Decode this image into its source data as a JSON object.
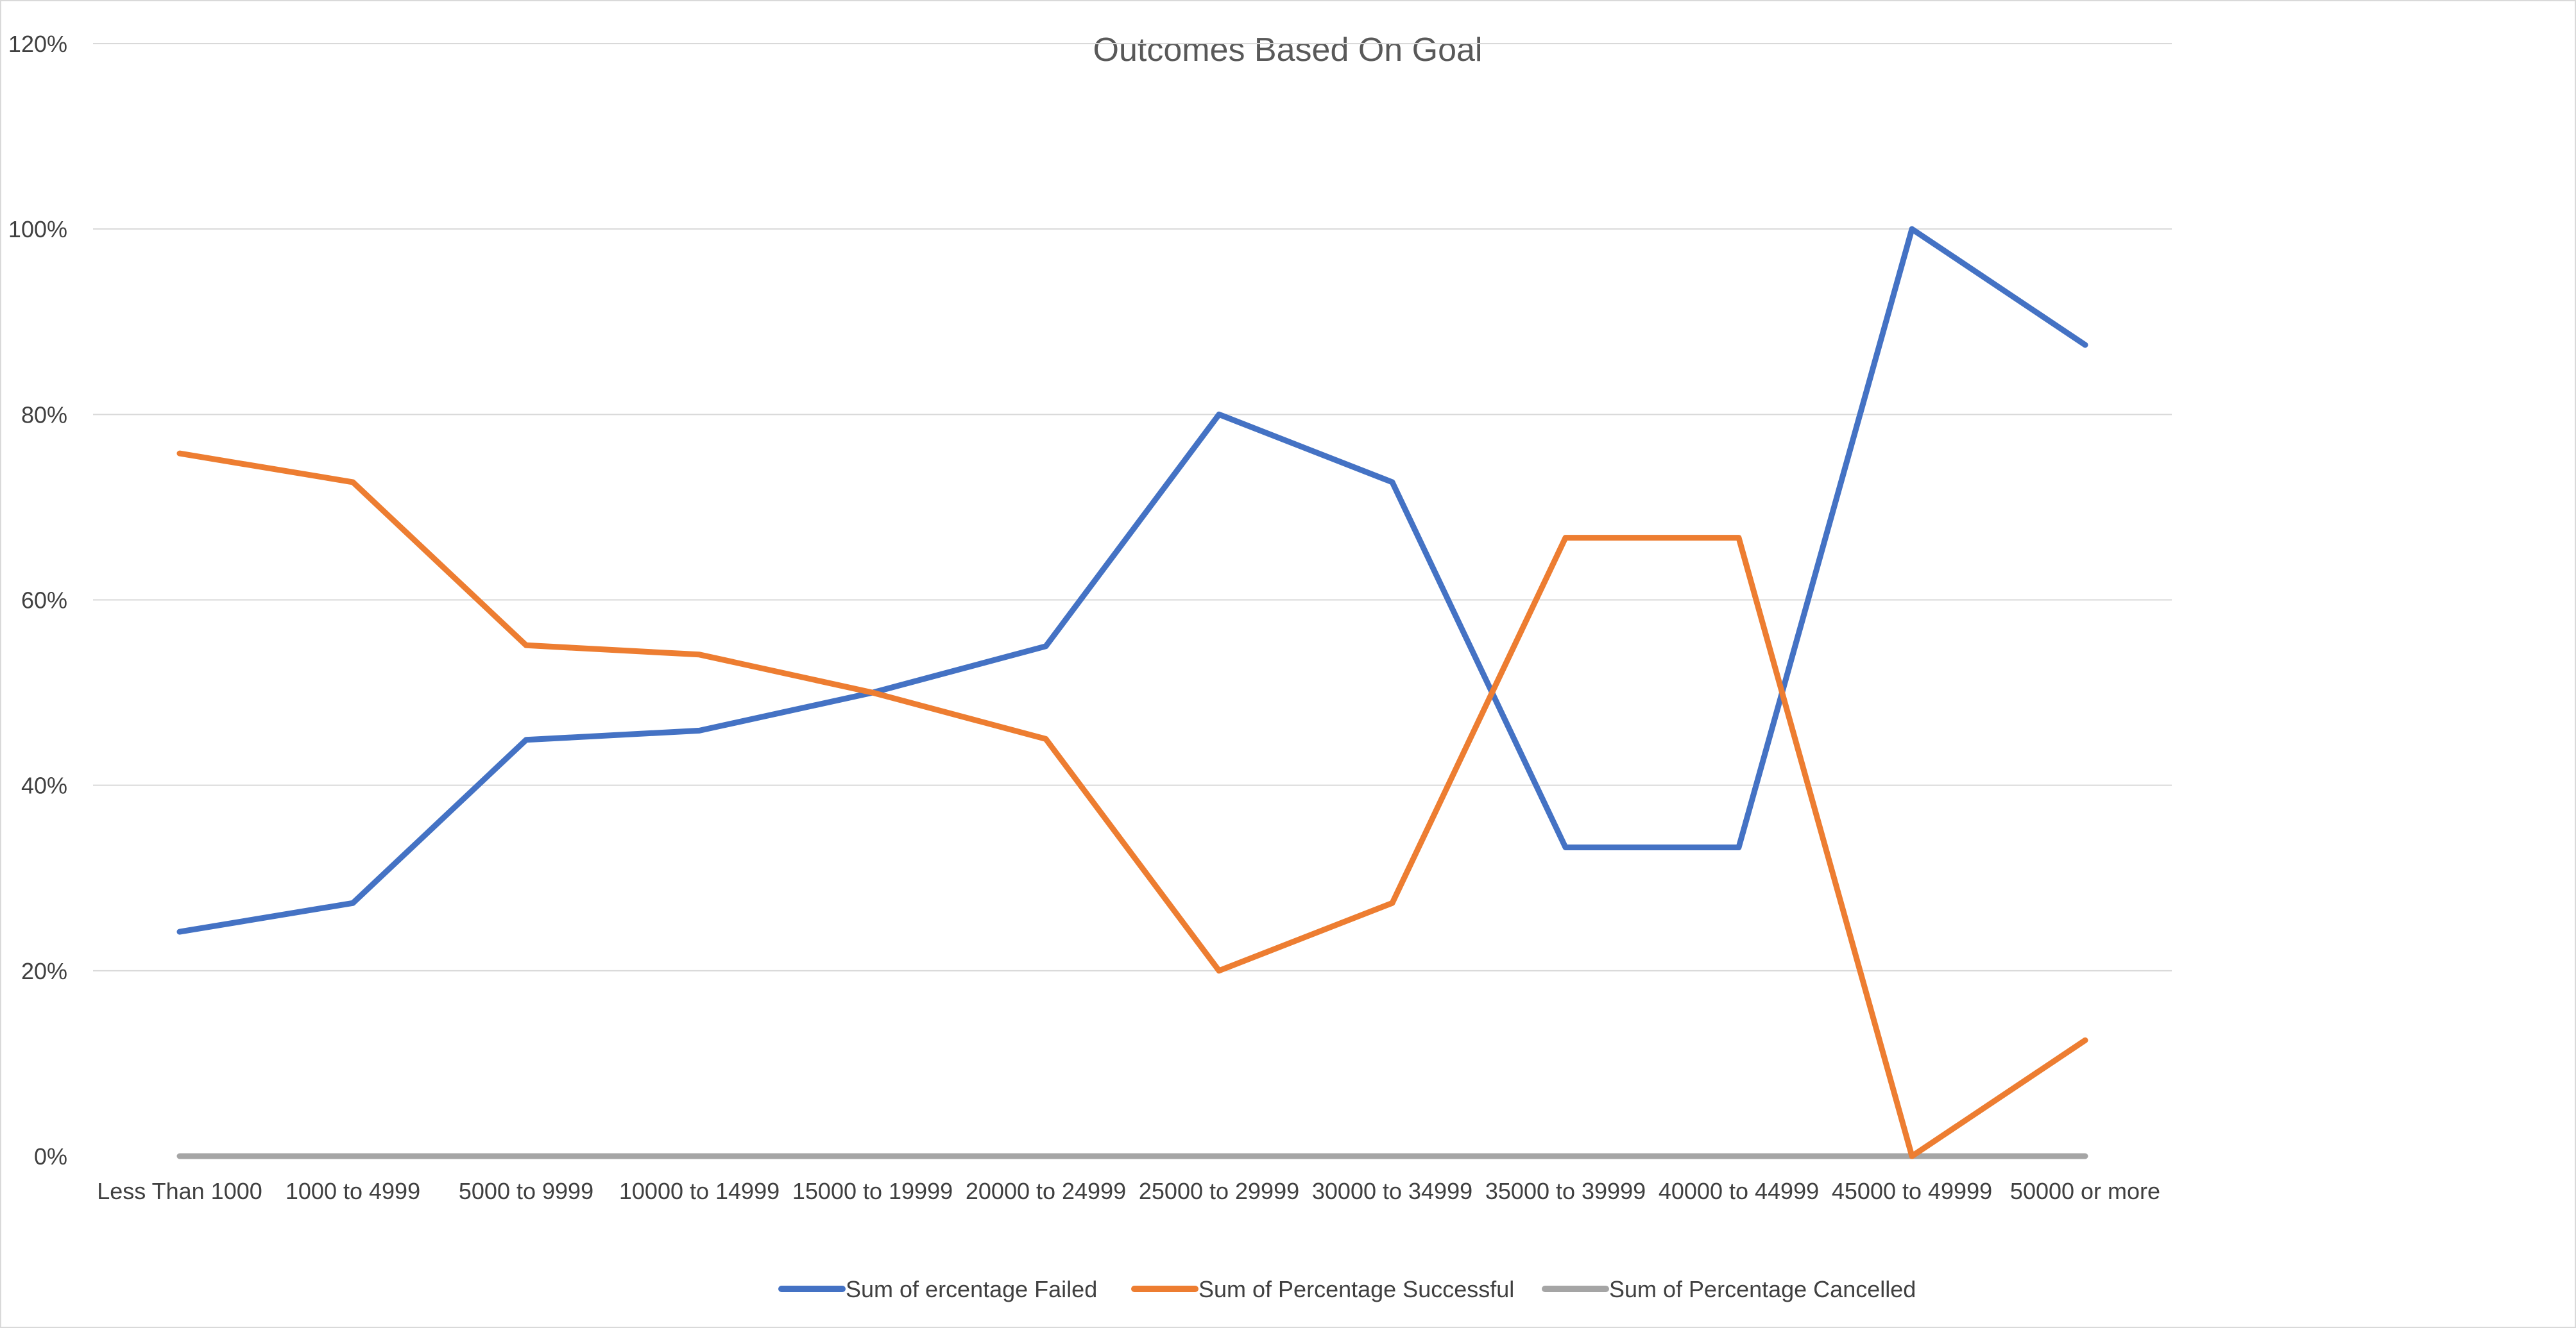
{
  "chart_data": {
    "type": "line",
    "title": "Outcomes Based On Goal",
    "xlabel": "",
    "ylabel": "",
    "ylim": [
      0,
      1.2
    ],
    "yticks": [
      0,
      0.2,
      0.4,
      0.6,
      0.8,
      1.0,
      1.2
    ],
    "ytick_labels": [
      "0%",
      "20%",
      "40%",
      "60%",
      "80%",
      "100%",
      "120%"
    ],
    "grid": true,
    "legend_position": "bottom",
    "categories": [
      "Less Than 1000",
      "1000 to 4999",
      "5000 to 9999",
      "10000 to 14999",
      "15000 to 19999",
      "20000 to 24999",
      "25000 to 29999",
      "30000 to 34999",
      "35000 to 39999",
      "40000 to 44999",
      "45000 to 49999",
      "50000 or more"
    ],
    "series": [
      {
        "name": "Sum of ercentage Failed",
        "color": "#4472c4",
        "values": [
          0.242,
          0.273,
          0.449,
          0.459,
          0.5,
          0.55,
          0.8,
          0.727,
          0.333,
          0.333,
          1.0,
          0.875
        ]
      },
      {
        "name": "Sum of Percentage Successful",
        "color": "#ed7d31",
        "values": [
          0.758,
          0.727,
          0.551,
          0.541,
          0.5,
          0.45,
          0.2,
          0.273,
          0.667,
          0.667,
          0.0,
          0.125
        ]
      },
      {
        "name": "Sum of Percentage Cancelled",
        "color": "#a5a5a5",
        "values": [
          0,
          0,
          0,
          0,
          0,
          0,
          0,
          0,
          0,
          0,
          0,
          0
        ]
      }
    ]
  }
}
